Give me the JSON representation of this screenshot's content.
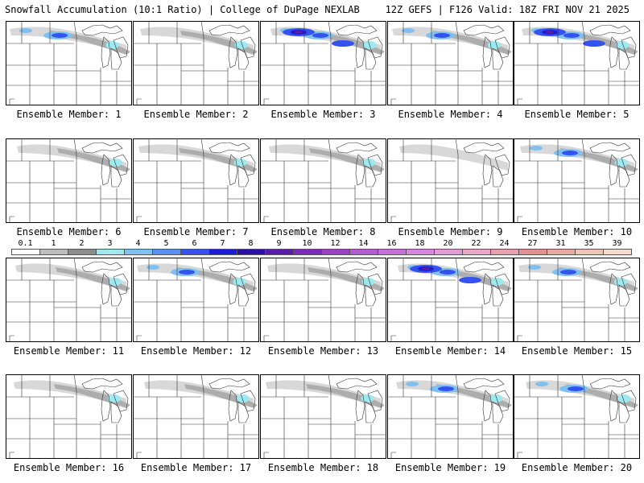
{
  "header": {
    "title": "Snowfall Accumulation (10:1 Ratio) | College of DuPage NEXLAB",
    "run_info": "12Z GEFS | F126 Valid: 18Z FRI NOV 21 2025"
  },
  "members": [
    {
      "label": "Ensemble Member: 1",
      "intensity": 2
    },
    {
      "label": "Ensemble Member: 2",
      "intensity": 1
    },
    {
      "label": "Ensemble Member: 3",
      "intensity": 3
    },
    {
      "label": "Ensemble Member: 4",
      "intensity": 2
    },
    {
      "label": "Ensemble Member: 5",
      "intensity": 3
    },
    {
      "label": "Ensemble Member: 6",
      "intensity": 1
    },
    {
      "label": "Ensemble Member: 7",
      "intensity": 1
    },
    {
      "label": "Ensemble Member: 8",
      "intensity": 1
    },
    {
      "label": "Ensemble Member: 9",
      "intensity": 0
    },
    {
      "label": "Ensemble Member: 10",
      "intensity": 2
    },
    {
      "label": "Ensemble Member: 11",
      "intensity": 1
    },
    {
      "label": "Ensemble Member: 12",
      "intensity": 2
    },
    {
      "label": "Ensemble Member: 13",
      "intensity": 1
    },
    {
      "label": "Ensemble Member: 14",
      "intensity": 3
    },
    {
      "label": "Ensemble Member: 15",
      "intensity": 2
    },
    {
      "label": "Ensemble Member: 16",
      "intensity": 1
    },
    {
      "label": "Ensemble Member: 17",
      "intensity": 1
    },
    {
      "label": "Ensemble Member: 18",
      "intensity": 1
    },
    {
      "label": "Ensemble Member: 19",
      "intensity": 2
    },
    {
      "label": "Ensemble Member: 20",
      "intensity": 2
    }
  ],
  "colorbar": {
    "labels": [
      "0.1",
      "1",
      "2",
      "3",
      "4",
      "5",
      "6",
      "7",
      "8",
      "9",
      "10",
      "12",
      "14",
      "16",
      "18",
      "20",
      "22",
      "24",
      "27",
      "31",
      "35",
      "39"
    ],
    "colors": [
      "#ffffff",
      "#bdbdbd",
      "#8c8c8c",
      "#9ee8ef",
      "#7fc0f2",
      "#5a8ff0",
      "#3352f0",
      "#1c1cd8",
      "#2a0ea6",
      "#5b1aa8",
      "#7d2ab8",
      "#9a3fc6",
      "#b45ad2",
      "#c671d9",
      "#d784dd",
      "#e39ad8",
      "#e8a6c9",
      "#e8a0ae",
      "#e29090",
      "#e8aaa0",
      "#f0c4b4",
      "#f6dccd"
    ]
  },
  "map_colors": {
    "light_gray": "#d4d4d4",
    "mid_gray": "#a8a8a8",
    "cyan": "#9ee8ef",
    "light_blue": "#7fc0f2",
    "blue": "#3352f0",
    "dark_blue": "#1c1cd8",
    "purple": "#5b1aa8"
  }
}
